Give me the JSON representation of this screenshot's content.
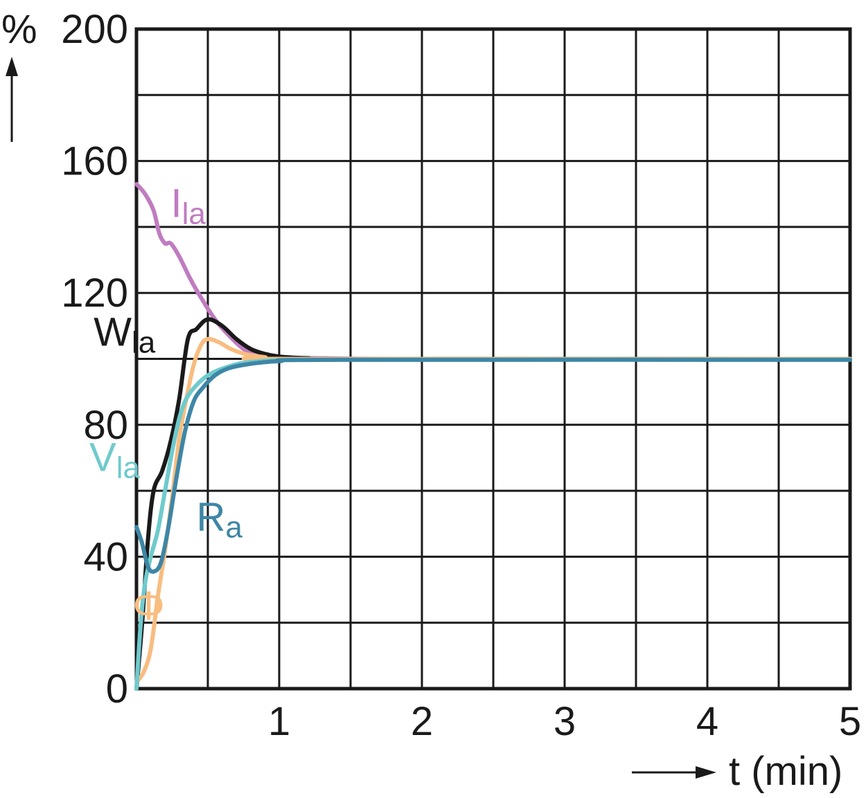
{
  "chart_data": {
    "type": "line",
    "xlabel": "t (min)",
    "ylabel": "%",
    "xlim": [
      0,
      5
    ],
    "ylim": [
      0,
      200
    ],
    "x_ticks": [
      1,
      2,
      3,
      4,
      5
    ],
    "y_ticks": [
      0,
      40,
      80,
      120,
      160,
      200
    ],
    "x_grid_step": 0.5,
    "y_grid_step": 20,
    "grid": true,
    "series": [
      {
        "name": "I",
        "subscript": "la",
        "color": "#c07cc0",
        "label_anchor": [
          0.24,
          143
        ],
        "points": [
          [
            0,
            153
          ],
          [
            0.06,
            150
          ],
          [
            0.12,
            145
          ],
          [
            0.16,
            138
          ],
          [
            0.2,
            135
          ],
          [
            0.24,
            135
          ],
          [
            0.3,
            131
          ],
          [
            0.38,
            124
          ],
          [
            0.46,
            118
          ],
          [
            0.55,
            112
          ],
          [
            0.65,
            107
          ],
          [
            0.75,
            103
          ],
          [
            0.85,
            101
          ],
          [
            1.0,
            100.4
          ],
          [
            1.3,
            100.2
          ],
          [
            2.0,
            100
          ],
          [
            5.0,
            100
          ]
        ]
      },
      {
        "name": "W",
        "subscript": "la",
        "color": "#1a1a1a",
        "label_anchor": [
          -0.3,
          104
        ],
        "points": [
          [
            0,
            0
          ],
          [
            0.04,
            20
          ],
          [
            0.08,
            45
          ],
          [
            0.12,
            60
          ],
          [
            0.18,
            66
          ],
          [
            0.24,
            75
          ],
          [
            0.3,
            88
          ],
          [
            0.36,
            106
          ],
          [
            0.42,
            109
          ],
          [
            0.5,
            112
          ],
          [
            0.6,
            110
          ],
          [
            0.7,
            106
          ],
          [
            0.8,
            103
          ],
          [
            0.9,
            101.5
          ],
          [
            1.0,
            100.7
          ],
          [
            1.2,
            100.2
          ],
          [
            1.5,
            100
          ],
          [
            5.0,
            100
          ]
        ]
      },
      {
        "name": "",
        "color": "#f8bd80",
        "label_anchor": [
          0,
          0
        ],
        "points": [
          [
            0,
            2
          ],
          [
            0.05,
            5
          ],
          [
            0.1,
            12
          ],
          [
            0.15,
            28
          ],
          [
            0.2,
            42
          ],
          [
            0.25,
            58
          ],
          [
            0.3,
            76
          ],
          [
            0.35,
            88
          ],
          [
            0.4,
            98
          ],
          [
            0.45,
            104
          ],
          [
            0.5,
            106
          ],
          [
            0.58,
            105
          ],
          [
            0.66,
            103
          ],
          [
            0.76,
            101.5
          ],
          [
            0.9,
            100.5
          ],
          [
            1.1,
            100
          ],
          [
            5.0,
            100
          ]
        ]
      },
      {
        "name": "V",
        "subscript": "la",
        "color": "#6fcacd",
        "label_anchor": [
          -0.33,
          66
        ],
        "points": [
          [
            0,
            0
          ],
          [
            0.03,
            20
          ],
          [
            0.06,
            32
          ],
          [
            0.1,
            40
          ],
          [
            0.15,
            48
          ],
          [
            0.2,
            60
          ],
          [
            0.25,
            72
          ],
          [
            0.3,
            82
          ],
          [
            0.35,
            88
          ],
          [
            0.42,
            92
          ],
          [
            0.5,
            95
          ],
          [
            0.6,
            97
          ],
          [
            0.75,
            98.8
          ],
          [
            1.0,
            99.6
          ],
          [
            1.5,
            99.8
          ],
          [
            5.0,
            99.8
          ]
        ]
      },
      {
        "name": "R",
        "subscript": "a",
        "color": "#3e86a6",
        "label_anchor": [
          0.42,
          48
        ],
        "points": [
          [
            0,
            49
          ],
          [
            0.04,
            44
          ],
          [
            0.08,
            37
          ],
          [
            0.12,
            35.5
          ],
          [
            0.17,
            38
          ],
          [
            0.22,
            48
          ],
          [
            0.28,
            64
          ],
          [
            0.34,
            78
          ],
          [
            0.4,
            87
          ],
          [
            0.46,
            91
          ],
          [
            0.55,
            95
          ],
          [
            0.65,
            97.2
          ],
          [
            0.8,
            98.5
          ],
          [
            1.0,
            99.3
          ],
          [
            1.4,
            99.7
          ],
          [
            5.0,
            99.7
          ]
        ]
      }
    ],
    "annotations": [
      {
        "text": "Φ",
        "color": "#f8bd80",
        "anchor": [
          -0.05,
          21
        ]
      }
    ]
  }
}
